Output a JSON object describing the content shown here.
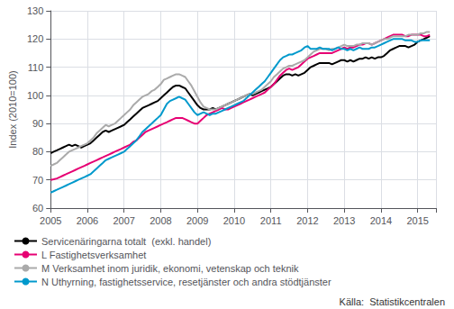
{
  "chart_data": {
    "type": "line",
    "title": "",
    "ylabel": "Index (2010=100)",
    "source": "Källa:  Statistikcentralen",
    "xlim": [
      2005.0,
      2015.5
    ],
    "xticks": [
      2005,
      2006,
      2007,
      2008,
      2009,
      2010,
      2011,
      2012,
      2013,
      2014,
      2015
    ],
    "ylim": [
      60,
      130
    ],
    "yticks": [
      60,
      70,
      80,
      90,
      100,
      110,
      120,
      130
    ],
    "grid": true,
    "legend": "bottom",
    "x": [
      2005.0,
      2005.083,
      2005.167,
      2005.25,
      2005.333,
      2005.417,
      2005.5,
      2005.583,
      2005.667,
      2005.75,
      2005.833,
      2005.917,
      2006.0,
      2006.083,
      2006.167,
      2006.25,
      2006.333,
      2006.417,
      2006.5,
      2006.583,
      2006.667,
      2006.75,
      2006.833,
      2006.917,
      2007.0,
      2007.083,
      2007.167,
      2007.25,
      2007.333,
      2007.417,
      2007.5,
      2007.583,
      2007.667,
      2007.75,
      2007.833,
      2007.917,
      2008.0,
      2008.083,
      2008.167,
      2008.25,
      2008.333,
      2008.417,
      2008.5,
      2008.583,
      2008.667,
      2008.75,
      2008.833,
      2008.917,
      2009.0,
      2009.083,
      2009.167,
      2009.25,
      2009.333,
      2009.417,
      2009.5,
      2009.583,
      2009.667,
      2009.75,
      2009.833,
      2009.917,
      2010.0,
      2010.083,
      2010.167,
      2010.25,
      2010.333,
      2010.417,
      2010.5,
      2010.583,
      2010.667,
      2010.75,
      2010.833,
      2010.917,
      2011.0,
      2011.083,
      2011.167,
      2011.25,
      2011.333,
      2011.417,
      2011.5,
      2011.583,
      2011.667,
      2011.75,
      2011.833,
      2011.917,
      2012.0,
      2012.083,
      2012.167,
      2012.25,
      2012.333,
      2012.417,
      2012.5,
      2012.583,
      2012.667,
      2012.75,
      2012.833,
      2012.917,
      2013.0,
      2013.083,
      2013.167,
      2013.25,
      2013.333,
      2013.417,
      2013.5,
      2013.583,
      2013.667,
      2013.75,
      2013.833,
      2013.917,
      2014.0,
      2014.083,
      2014.167,
      2014.25,
      2014.333,
      2014.417,
      2014.5,
      2014.583,
      2014.667,
      2014.75,
      2014.833,
      2014.917,
      2015.0,
      2015.083,
      2015.167,
      2015.25,
      2015.333
    ],
    "series": [
      {
        "name": "Servicenäringarna totalt  (exkl. handel)",
        "color": "#000000",
        "values": [
          79.5,
          80.0,
          80.5,
          81.0,
          81.5,
          82.0,
          82.5,
          82.0,
          82.5,
          82.0,
          81.5,
          82.0,
          82.5,
          83.0,
          84.0,
          85.0,
          86.0,
          87.0,
          87.5,
          87.0,
          87.5,
          88.0,
          88.5,
          89.0,
          89.5,
          90.5,
          91.5,
          92.5,
          93.5,
          94.5,
          95.5,
          96.0,
          96.5,
          97.0,
          97.5,
          98.0,
          99.0,
          100.0,
          101.0,
          102.0,
          103.0,
          103.5,
          103.5,
          103.0,
          102.5,
          101.0,
          99.5,
          98.0,
          96.5,
          95.5,
          95.0,
          95.0,
          95.0,
          95.5,
          95.0,
          95.5,
          96.0,
          96.5,
          97.0,
          97.5,
          98.0,
          98.5,
          99.0,
          99.5,
          100.0,
          100.5,
          100.0,
          100.5,
          101.0,
          101.5,
          102.0,
          102.5,
          103.0,
          104.0,
          105.0,
          106.0,
          107.0,
          107.5,
          107.5,
          107.0,
          107.5,
          107.0,
          107.5,
          108.0,
          109.0,
          110.0,
          110.5,
          111.0,
          111.5,
          111.5,
          111.5,
          111.5,
          111.0,
          111.5,
          112.0,
          112.5,
          112.5,
          112.0,
          112.5,
          112.0,
          112.5,
          113.0,
          113.0,
          113.5,
          113.0,
          113.5,
          113.0,
          113.5,
          113.5,
          114.0,
          115.0,
          116.0,
          116.5,
          117.0,
          117.5,
          117.5,
          117.5,
          117.0,
          117.5,
          118.0,
          119.0,
          119.5,
          120.0,
          120.5,
          121.0
        ]
      },
      {
        "name": "L Fastighetsverksamhet",
        "color": "#e60073",
        "values": [
          70.0,
          70.2,
          70.5,
          71.0,
          71.5,
          72.0,
          72.5,
          73.0,
          73.5,
          74.0,
          74.5,
          75.0,
          75.5,
          76.0,
          76.5,
          77.0,
          77.5,
          78.0,
          78.5,
          79.0,
          79.5,
          80.0,
          80.5,
          81.0,
          81.5,
          82.0,
          82.5,
          83.5,
          84.0,
          85.0,
          86.0,
          87.0,
          87.5,
          88.0,
          88.5,
          89.0,
          89.5,
          90.0,
          90.5,
          91.0,
          91.5,
          92.0,
          92.0,
          92.0,
          91.5,
          91.0,
          90.5,
          90.0,
          90.0,
          91.0,
          92.0,
          93.0,
          93.5,
          94.0,
          94.5,
          95.0,
          95.5,
          95.0,
          95.0,
          95.5,
          96.0,
          96.5,
          97.0,
          97.5,
          98.0,
          98.5,
          99.0,
          99.5,
          100.0,
          100.5,
          101.0,
          102.0,
          103.0,
          104.0,
          105.5,
          107.0,
          108.0,
          109.0,
          109.5,
          109.0,
          109.5,
          110.0,
          111.0,
          112.0,
          113.0,
          113.5,
          114.0,
          114.5,
          115.0,
          115.0,
          115.0,
          115.0,
          115.0,
          115.5,
          116.0,
          116.5,
          117.0,
          116.5,
          117.0,
          117.0,
          117.5,
          118.0,
          118.0,
          118.5,
          118.5,
          118.0,
          118.5,
          119.0,
          119.5,
          120.0,
          120.5,
          121.0,
          121.5,
          121.5,
          121.5,
          121.5,
          121.0,
          121.0,
          121.5,
          121.5,
          121.5,
          121.5,
          121.0,
          121.0,
          121.5
        ]
      },
      {
        "name": "M Verksamhet inom juridik, ekonomi, vetenskap och teknik",
        "color": "#aaaaaa",
        "values": [
          75.0,
          75.5,
          76.0,
          77.0,
          78.0,
          79.0,
          80.0,
          80.5,
          81.0,
          81.5,
          82.0,
          82.5,
          83.0,
          84.0,
          85.0,
          86.5,
          87.5,
          88.5,
          89.5,
          89.0,
          89.5,
          90.0,
          91.0,
          92.0,
          93.0,
          94.0,
          95.0,
          96.5,
          97.5,
          98.5,
          99.5,
          100.0,
          100.5,
          101.5,
          102.0,
          103.0,
          104.0,
          105.5,
          106.0,
          106.5,
          107.0,
          107.5,
          107.5,
          107.0,
          106.5,
          105.0,
          103.5,
          101.5,
          99.5,
          97.5,
          96.0,
          95.5,
          95.0,
          95.0,
          95.0,
          95.5,
          96.0,
          96.5,
          97.0,
          97.5,
          98.0,
          98.5,
          99.0,
          99.5,
          100.0,
          100.5,
          100.5,
          101.0,
          101.5,
          102.0,
          103.0,
          104.0,
          105.0,
          106.5,
          107.5,
          108.5,
          109.5,
          110.0,
          110.5,
          110.5,
          111.0,
          111.5,
          112.0,
          112.5,
          113.5,
          114.5,
          115.5,
          116.0,
          116.5,
          116.5,
          116.5,
          116.0,
          116.5,
          116.5,
          117.0,
          117.5,
          118.0,
          117.5,
          117.5,
          117.5,
          118.0,
          118.0,
          118.5,
          118.5,
          118.5,
          118.0,
          118.5,
          119.0,
          119.5,
          120.0,
          120.0,
          120.5,
          121.0,
          121.0,
          121.0,
          121.0,
          121.0,
          121.5,
          121.5,
          121.5,
          121.5,
          122.0,
          122.0,
          122.5,
          122.5
        ]
      },
      {
        "name": "N Uthyrning, fastighetsservice, resetjänster och andra stödtjänster",
        "color": "#0099cc",
        "values": [
          65.5,
          66.0,
          66.5,
          67.0,
          67.5,
          68.0,
          68.5,
          69.0,
          69.5,
          70.0,
          70.5,
          71.0,
          71.5,
          72.0,
          73.0,
          74.0,
          75.0,
          76.0,
          77.0,
          77.5,
          78.0,
          78.5,
          79.0,
          79.5,
          80.0,
          81.0,
          82.0,
          83.0,
          84.0,
          85.5,
          87.0,
          88.0,
          89.0,
          90.0,
          91.0,
          92.0,
          93.0,
          95.0,
          97.0,
          98.0,
          98.5,
          99.0,
          99.5,
          99.0,
          98.5,
          97.0,
          95.5,
          94.0,
          93.0,
          93.5,
          94.0,
          93.5,
          93.0,
          93.5,
          93.5,
          94.0,
          94.5,
          95.0,
          95.5,
          96.0,
          96.5,
          97.0,
          97.5,
          98.0,
          99.0,
          100.0,
          101.0,
          102.0,
          103.0,
          104.0,
          105.0,
          106.5,
          108.0,
          109.5,
          111.0,
          112.5,
          113.5,
          114.0,
          114.5,
          114.5,
          115.0,
          115.5,
          116.0,
          117.0,
          117.5,
          116.5,
          116.5,
          116.5,
          117.0,
          116.5,
          116.5,
          116.5,
          116.0,
          116.5,
          117.0,
          116.5,
          116.5,
          116.0,
          116.5,
          116.0,
          116.5,
          117.0,
          116.5,
          116.5,
          116.5,
          117.0,
          117.0,
          117.5,
          118.0,
          118.5,
          119.0,
          119.5,
          120.0,
          120.0,
          120.0,
          120.0,
          119.5,
          119.5,
          119.5,
          119.0,
          119.0,
          119.5,
          119.5,
          119.5,
          119.5
        ]
      }
    ]
  }
}
